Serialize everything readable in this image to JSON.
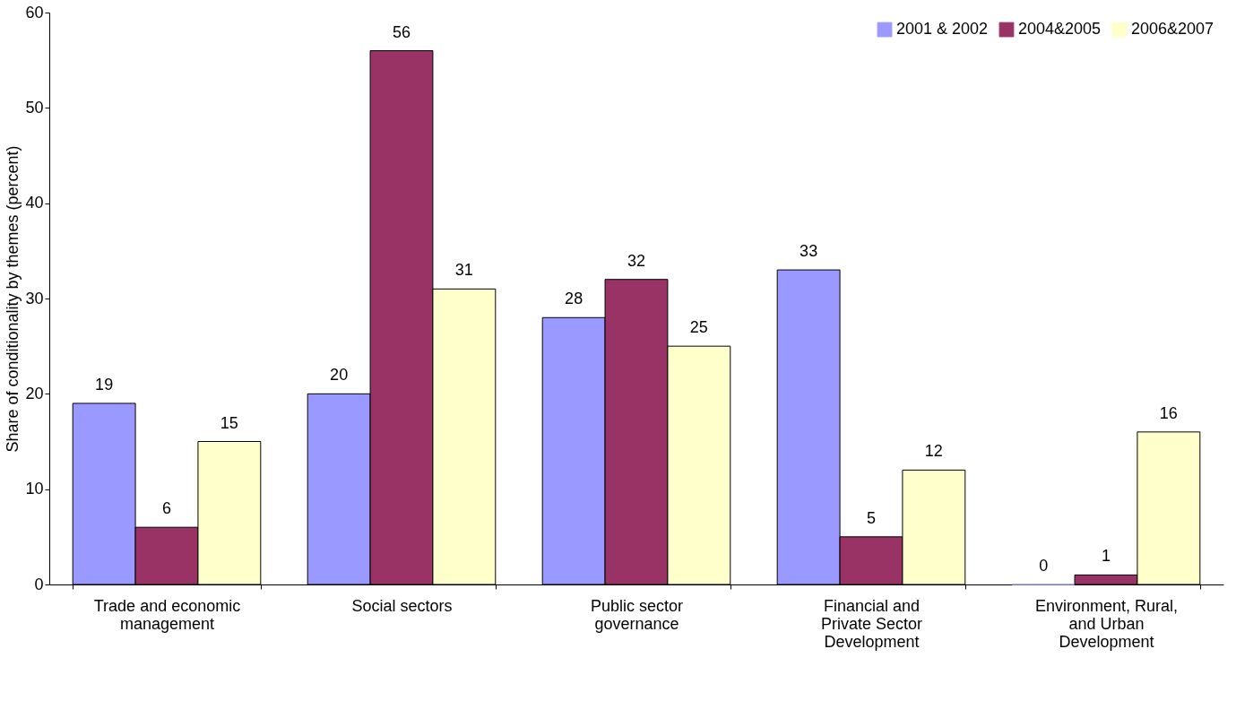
{
  "chart_data": {
    "type": "bar",
    "ylabel": "Share of conditionality by themes (percent)",
    "categories": [
      "Trade and economic management",
      "Social sectors",
      "Public sector governance",
      "Financial and Private Sector Development",
      "Environment, Rural, and Urban Development"
    ],
    "series": [
      {
        "name": "2001 & 2002",
        "color": "#9999ff",
        "values": [
          19,
          20,
          28,
          33,
          0
        ]
      },
      {
        "name": "2004&2005",
        "color": "#993366",
        "values": [
          6,
          56,
          32,
          5,
          1
        ]
      },
      {
        "name": "2006&2007",
        "color": "#ffffcc",
        "values": [
          15,
          31,
          25,
          12,
          16
        ]
      }
    ],
    "ylim": [
      0,
      60
    ],
    "yticks": [
      0,
      10,
      20,
      30,
      40,
      50,
      60
    ],
    "grid": false,
    "legend": "top right",
    "data_labels": true
  }
}
